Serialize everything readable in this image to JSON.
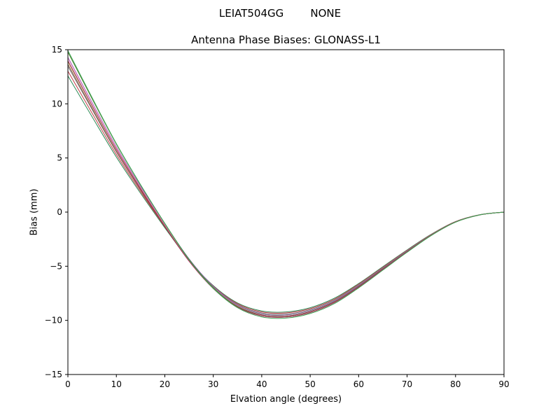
{
  "titles": {
    "suptitle": "LEIAT504GG        NONE",
    "axes_title": "Antenna Phase Biases: GLONASS-L1"
  },
  "chart_data": {
    "type": "line",
    "title": "Antenna Phase Biases: GLONASS-L1",
    "suptitle": "LEIAT504GG        NONE",
    "xlabel": "Elvation angle (degrees)",
    "ylabel": "Bias (mm)",
    "xlim": [
      0,
      90
    ],
    "ylim": [
      -15,
      15
    ],
    "xticks": [
      0,
      10,
      20,
      30,
      40,
      50,
      60,
      70,
      80,
      90
    ],
    "yticks": [
      -15,
      -10,
      -5,
      0,
      5,
      10,
      15
    ],
    "grid": false,
    "legend": "none",
    "x": [
      0,
      5,
      10,
      15,
      20,
      25,
      30,
      35,
      40,
      45,
      50,
      55,
      60,
      65,
      70,
      75,
      80,
      85,
      90
    ],
    "series": [
      {
        "name": "line-01",
        "color": "#2e8b57",
        "values": [
          12.58,
          8.8,
          5.09,
          1.74,
          -1.44,
          -4.45,
          -6.79,
          -8.39,
          -9.13,
          -9.22,
          -8.83,
          -7.95,
          -6.6,
          -5.04,
          -3.49,
          -2.04,
          -0.87,
          -0.24,
          0
        ]
      },
      {
        "name": "line-02",
        "color": "#c23b47",
        "values": [
          13.02,
          9.13,
          5.32,
          1.89,
          -1.36,
          -4.43,
          -6.83,
          -8.46,
          -9.22,
          -9.31,
          -8.92,
          -8.04,
          -6.66,
          -5.1,
          -3.53,
          -2.06,
          -0.88,
          -0.25,
          0
        ]
      },
      {
        "name": "line-03",
        "color": "#808080",
        "values": [
          13.46,
          9.47,
          5.56,
          2.05,
          -1.28,
          -4.42,
          -6.86,
          -8.53,
          -9.31,
          -9.41,
          -9.01,
          -8.12,
          -6.73,
          -5.15,
          -3.56,
          -2.08,
          -0.89,
          -0.25,
          0
        ]
      },
      {
        "name": "line-04",
        "color": "#9aa824",
        "values": [
          13.9,
          9.8,
          5.8,
          2.2,
          -1.2,
          -4.4,
          -6.9,
          -8.6,
          -9.4,
          -9.5,
          -9.1,
          -8.2,
          -6.8,
          -5.2,
          -3.6,
          -2.1,
          -0.9,
          -0.25,
          0
        ]
      },
      {
        "name": "line-05",
        "color": "#8a5fb0",
        "values": [
          14.3,
          10.12,
          6.04,
          2.38,
          -1.08,
          -4.32,
          -6.86,
          -8.58,
          -9.4,
          -9.5,
          -9.1,
          -8.2,
          -6.8,
          -5.2,
          -3.6,
          -2.1,
          -0.9,
          -0.25,
          0
        ]
      },
      {
        "name": "line-06",
        "color": "#d97ec4",
        "values": [
          14.24,
          10.06,
          5.98,
          2.31,
          -1.15,
          -4.4,
          -6.95,
          -8.68,
          -9.49,
          -9.6,
          -9.19,
          -8.28,
          -6.87,
          -5.25,
          -3.64,
          -2.12,
          -0.91,
          -0.25,
          0
        ]
      },
      {
        "name": "line-07",
        "color": "#7b4c3a",
        "values": [
          13.64,
          9.58,
          5.62,
          2.05,
          -1.34,
          -4.52,
          -7.01,
          -8.71,
          -9.5,
          -9.6,
          -9.19,
          -8.28,
          -6.87,
          -5.25,
          -3.64,
          -2.12,
          -0.91,
          -0.25,
          0
        ]
      },
      {
        "name": "line-08",
        "color": "#4c7d2a",
        "values": [
          14.78,
          10.47,
          6.28,
          2.51,
          -1.04,
          -4.37,
          -6.97,
          -8.74,
          -9.58,
          -9.69,
          -9.28,
          -8.36,
          -6.94,
          -5.3,
          -3.67,
          -2.14,
          -0.92,
          -0.26,
          0
        ]
      },
      {
        "name": "line-09",
        "color": "#b03060",
        "values": [
          13.98,
          9.84,
          5.8,
          2.16,
          -1.29,
          -4.53,
          -7.06,
          -8.78,
          -9.59,
          -9.69,
          -9.28,
          -8.36,
          -6.94,
          -5.3,
          -3.67,
          -2.14,
          -0.92,
          -0.26,
          0
        ]
      },
      {
        "name": "line-10",
        "color": "#3aa655",
        "values": [
          14.92,
          10.57,
          6.33,
          2.53,
          -1.05,
          -4.41,
          -7.04,
          -8.83,
          -9.68,
          -9.79,
          -9.37,
          -8.45,
          -7.0,
          -5.36,
          -3.71,
          -2.16,
          -0.93,
          -0.26,
          0
        ]
      }
    ],
    "plot_box_color": "#000000",
    "line_width": 1
  }
}
